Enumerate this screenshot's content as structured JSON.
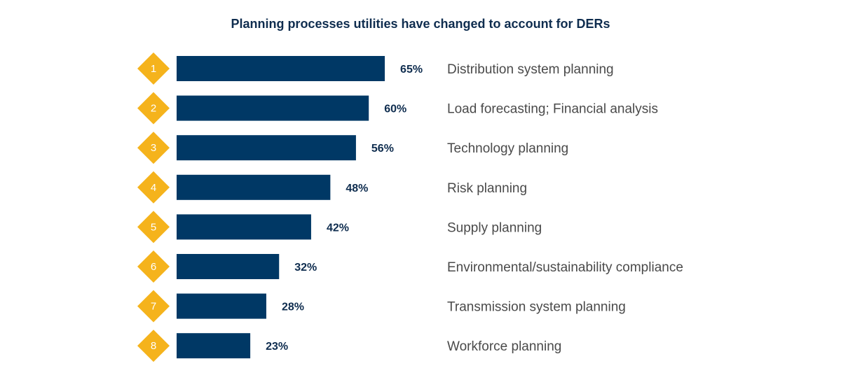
{
  "chart_data": {
    "type": "bar",
    "orientation": "horizontal",
    "title": "Planning processes utilities have changed to account for DERs",
    "ranks": [
      "1",
      "2",
      "3",
      "4",
      "5",
      "6",
      "7",
      "8"
    ],
    "categories": [
      "Distribution system planning",
      "Load forecasting; Financial analysis",
      "Technology planning",
      "Risk planning",
      "Supply planning",
      "Environmental/sustainability compliance",
      "Transmission system planning",
      "Workforce planning"
    ],
    "values": [
      65,
      60,
      56,
      48,
      42,
      32,
      28,
      23
    ],
    "value_labels": [
      "65%",
      "60%",
      "56%",
      "48%",
      "42%",
      "32%",
      "28%",
      "23%"
    ],
    "unit": "%",
    "grid": false,
    "legend": "none"
  },
  "colors": {
    "bar": "#003865",
    "rank_marker": "#f5b31c",
    "value_label": "#0f2d4f",
    "category_label": "#4a4a4a",
    "title": "#0f2d4f"
  }
}
